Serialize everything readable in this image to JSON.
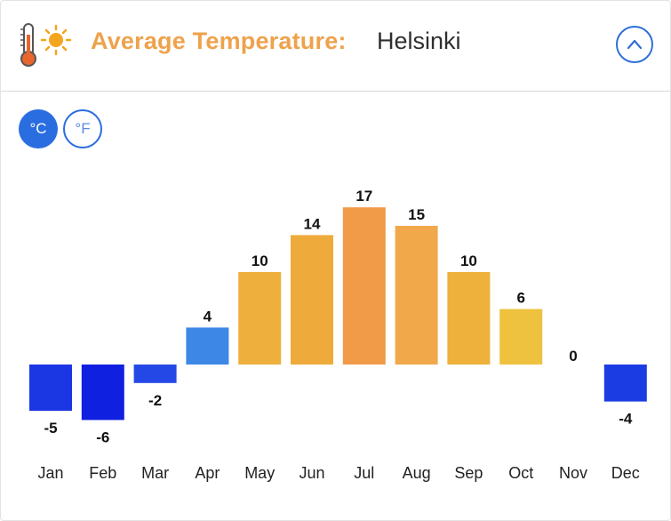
{
  "header": {
    "title": "Average Temperature:",
    "city": "Helsinki",
    "icon": "thermometer-sun-icon",
    "collapse_icon": "chevron-up-icon"
  },
  "units": {
    "celsius": "°C",
    "fahrenheit": "°F",
    "selected": "°C"
  },
  "colors": {
    "title": "#eea24c",
    "accent": "#2a6de0"
  },
  "chart_data": {
    "type": "bar",
    "title": "Average Temperature: Helsinki",
    "xlabel": "",
    "ylabel": "°C",
    "categories": [
      "Jan",
      "Feb",
      "Mar",
      "Apr",
      "May",
      "Jun",
      "Jul",
      "Aug",
      "Sep",
      "Oct",
      "Nov",
      "Dec"
    ],
    "values": [
      -5,
      -6,
      -2,
      4,
      10,
      14,
      17,
      15,
      10,
      6,
      0,
      -4
    ],
    "colors": [
      "#1b36e3",
      "#1020e0",
      "#2448e6",
      "#3d88e6",
      "#eeaf3c",
      "#eeab3c",
      "#f19a48",
      "#f0a84a",
      "#eeb13c",
      "#eec23e",
      "#eec23e",
      "#1b3be3"
    ],
    "grid": false,
    "legend": "none"
  }
}
